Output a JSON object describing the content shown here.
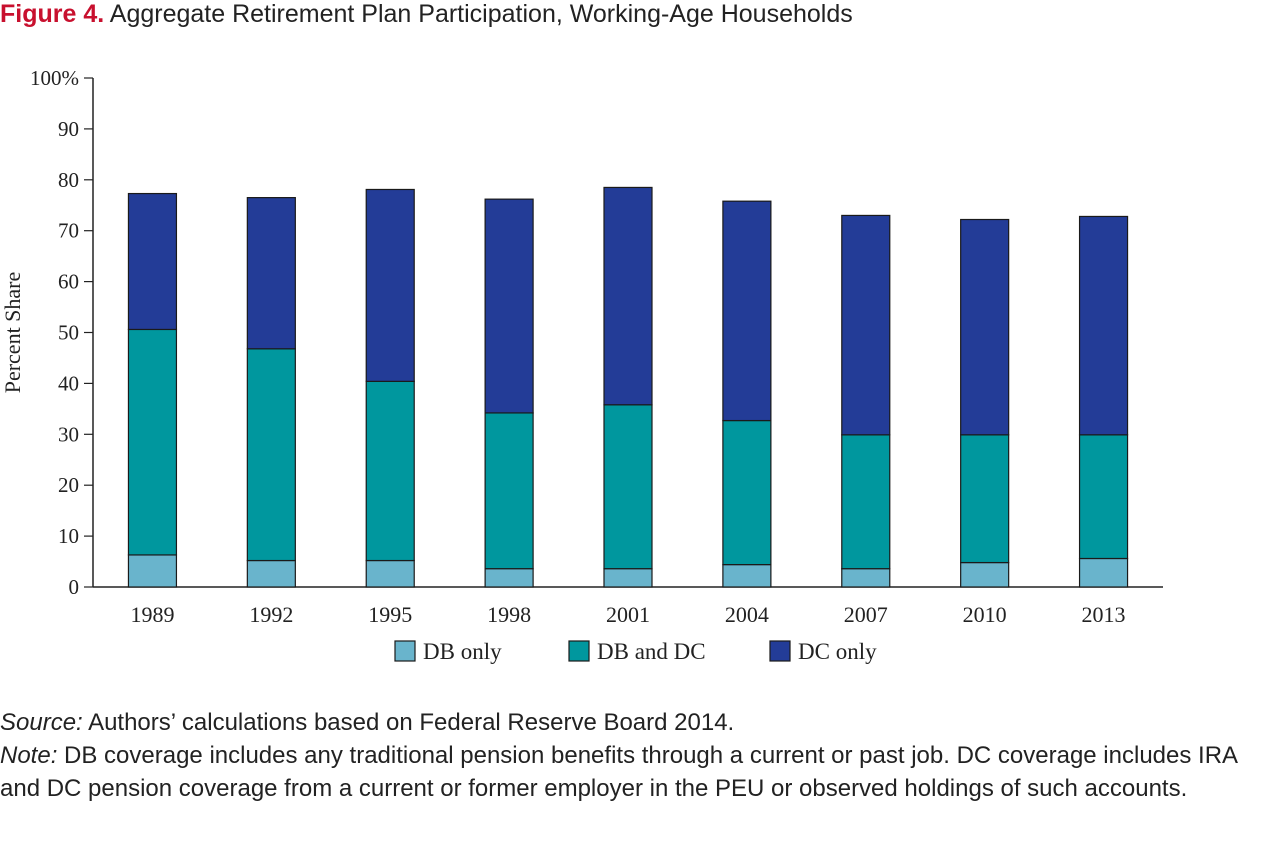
{
  "figure": {
    "label": "Figure 4.",
    "title": "Aggregate Retirement Plan Participation, Working-Age Households"
  },
  "chart_data": {
    "type": "bar",
    "stacked": true,
    "title": "Aggregate Retirement Plan Participation, Working-Age Households",
    "xlabel": "",
    "ylabel": "Percent Share",
    "ylim": [
      0,
      100
    ],
    "yticks": [
      0,
      10,
      20,
      30,
      40,
      50,
      60,
      70,
      80,
      90,
      100
    ],
    "ytick_labels": [
      "0",
      "10",
      "20",
      "30",
      "40",
      "50",
      "60",
      "70",
      "80",
      "90",
      "100%"
    ],
    "categories": [
      "1989",
      "1992",
      "1995",
      "1998",
      "2001",
      "2004",
      "2007",
      "2010",
      "2013"
    ],
    "series": [
      {
        "name": "DB only",
        "color": "#69b4cc",
        "values": [
          6.3,
          5.2,
          5.2,
          3.6,
          3.6,
          4.4,
          3.6,
          4.8,
          5.6
        ]
      },
      {
        "name": "DB and DC",
        "color": "#00979e",
        "values": [
          44.3,
          41.6,
          35.2,
          30.6,
          32.2,
          28.3,
          26.3,
          25.1,
          24.3
        ]
      },
      {
        "name": "DC only",
        "color": "#233c97",
        "values": [
          26.7,
          29.7,
          37.7,
          42.0,
          42.7,
          43.1,
          43.1,
          42.3,
          42.9
        ]
      }
    ],
    "grid": false,
    "legend_position": "bottom"
  },
  "notes": {
    "source_label": "Source:",
    "source_text": " Authors’ calculations based on Federal Reserve Board 2014.",
    "note_label": "Note:",
    "note_text": " DB coverage includes any traditional pension benefits through a current or past job. DC coverage includes IRA and DC pension coverage from a current or former employer in the PEU or observed holdings of such accounts."
  }
}
